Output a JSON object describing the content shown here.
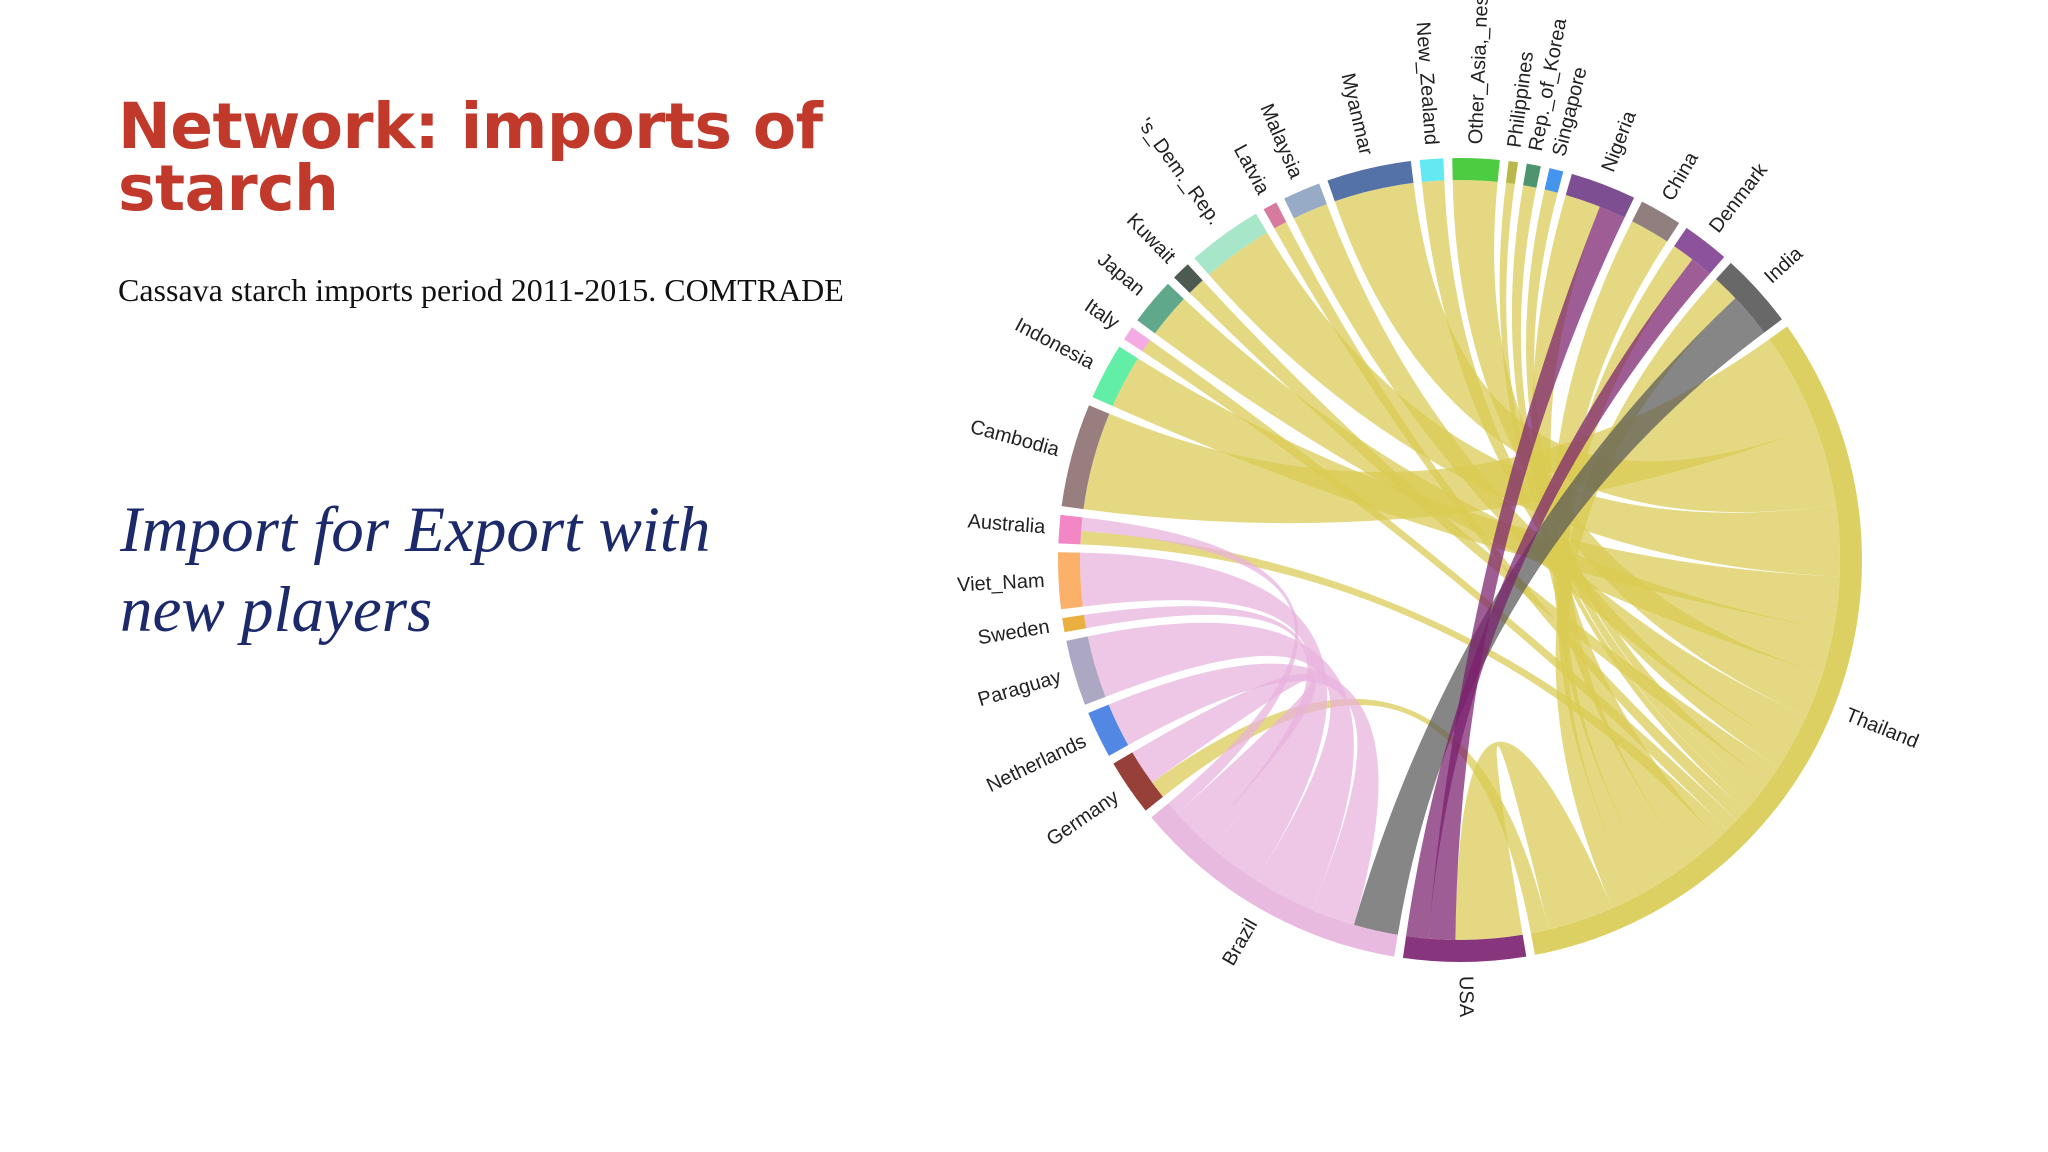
{
  "slide": {
    "title": "Network: imports of starch",
    "subtitle": "Cassava starch imports period 2011-2015. COMTRADE",
    "callout": "Import for Export with new players"
  },
  "chart_data": {
    "type": "chord",
    "title": "",
    "categories": [
      "Thailand",
      "USA",
      "Brazil",
      "Germany",
      "Netherlands",
      "Paraguay",
      "Sweden",
      "Viet_Nam",
      "Australia",
      "Cambodia",
      "Indonesia",
      "Italy",
      "Japan",
      "Kuwait",
      "Lao_People's_Dem._Rep.",
      "Latvia",
      "Malaysia",
      "Myanmar",
      "New_Zealand",
      "Other_Asia,_nes",
      "Philippines",
      "Rep._of_Korea",
      "Singapore",
      "Nigeria",
      "China",
      "Denmark",
      "India"
    ],
    "labels_shown": [
      "Thailand",
      "USA",
      "Brazil",
      "Germany",
      "Netherlands",
      "Paraguay",
      "Sweden",
      "Viet_Nam",
      "Australia",
      "Cambodia",
      "Indonesia",
      "Italy",
      "Japan",
      "Kuwait",
      "'s_Dem._Rep.",
      "Latvia",
      "Malaysia",
      "Myanmar",
      "New_Zealand",
      "Other_Asia,_nes",
      "Philippines",
      "Rep._of_Korea",
      "Singapore",
      "Nigeria",
      "China",
      "Denmark",
      "India"
    ],
    "colors": {
      "Thailand": "#d9cb52",
      "USA": "#7a1f6e",
      "Brazil": "#e7b2dc",
      "Germany": "#8c2a23",
      "Netherlands": "#3f7ae0",
      "Paraguay": "#a39ebc",
      "Sweden": "#e8a72a",
      "Viet_Nam": "#fba85a",
      "Australia": "#f27abf",
      "Cambodia": "#8d7070",
      "Indonesia": "#52ec9f",
      "Italy": "#f3a2e0",
      "Japan": "#4f9f7f",
      "Kuwait": "#38483f",
      "Lao_People's_Dem._Rep.": "#9fe3c4",
      "Latvia": "#d46c93",
      "Malaysia": "#8ca1c0",
      "Myanmar": "#42639e",
      "New_Zealand": "#52e7f0",
      "Other_Asia,_nes": "#3bc62c",
      "Philippines": "#b3b03a",
      "Rep._of_Korea": "#3a8a5e",
      "Singapore": "#3189ec",
      "Nigeria": "#6f3c86",
      "China": "#857070",
      "Denmark": "#7f3f90",
      "India": "#585858"
    },
    "flows": [
      {
        "from": "Thailand",
        "to": "Cambodia",
        "value": 22
      },
      {
        "from": "Thailand",
        "to": "Myanmar",
        "value": 18
      },
      {
        "from": "Thailand",
        "to": "Lao_People's_Dem._Rep.",
        "value": 16
      },
      {
        "from": "Thailand",
        "to": "Indonesia",
        "value": 12
      },
      {
        "from": "Thailand",
        "to": "Japan",
        "value": 10
      },
      {
        "from": "Thailand",
        "to": "Other_Asia,_nes",
        "value": 10
      },
      {
        "from": "Thailand",
        "to": "Malaysia",
        "value": 8
      },
      {
        "from": "Thailand",
        "to": "New_Zealand",
        "value": 5
      },
      {
        "from": "Thailand",
        "to": "Kuwait",
        "value": 4
      },
      {
        "from": "Thailand",
        "to": "Singapore",
        "value": 3
      },
      {
        "from": "Thailand",
        "to": "Rep._of_Korea",
        "value": 3
      },
      {
        "from": "Thailand",
        "to": "Philippines",
        "value": 2
      },
      {
        "from": "Thailand",
        "to": "Latvia",
        "value": 3
      },
      {
        "from": "Thailand",
        "to": "Italy",
        "value": 3
      },
      {
        "from": "Thailand",
        "to": "Australia",
        "value": 3
      },
      {
        "from": "Thailand",
        "to": "Nigeria",
        "value": 8
      },
      {
        "from": "Thailand",
        "to": "China",
        "value": 9
      },
      {
        "from": "Thailand",
        "to": "Denmark",
        "value": 5
      },
      {
        "from": "Thailand",
        "to": "India",
        "value": 6
      },
      {
        "from": "Thailand",
        "to": "USA",
        "value": 15
      },
      {
        "from": "Thailand",
        "to": "Germany",
        "value": 4
      },
      {
        "from": "India",
        "to": "Brazil",
        "value": 10
      },
      {
        "from": "USA",
        "to": "Nigeria",
        "value": 6
      },
      {
        "from": "USA",
        "to": "Denmark",
        "value": 5
      },
      {
        "from": "Brazil",
        "to": "Netherlands",
        "value": 10
      },
      {
        "from": "Brazil",
        "to": "Paraguay",
        "value": 14
      },
      {
        "from": "Brazil",
        "to": "Viet_Nam",
        "value": 12
      },
      {
        "from": "Brazil",
        "to": "Sweden",
        "value": 3
      },
      {
        "from": "Brazil",
        "to": "Germany",
        "value": 8
      },
      {
        "from": "Brazil",
        "to": "Australia",
        "value": 3
      }
    ],
    "grid": false,
    "legend": "labels around circle"
  }
}
